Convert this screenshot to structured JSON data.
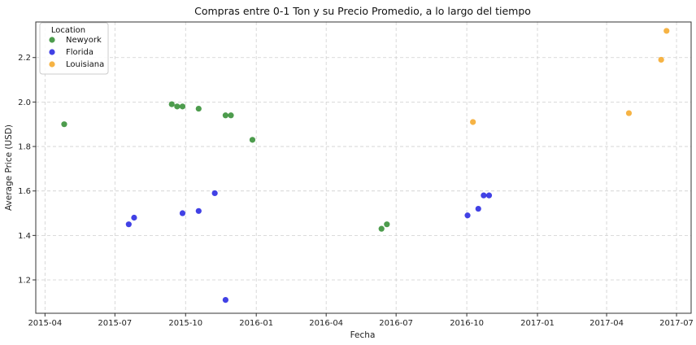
{
  "chart_data": {
    "type": "scatter",
    "title": "Compras entre 0-1 Ton y su Precio Promedio, a lo largo del tiempo",
    "xlabel": "Fecha",
    "ylabel": "Average Price (USD)",
    "xlim": [
      "2015-03-20",
      "2017-07-20"
    ],
    "ylim": [
      1.05,
      2.36
    ],
    "x_ticks": [
      "2015-04",
      "2015-07",
      "2015-10",
      "2016-01",
      "2016-04",
      "2016-07",
      "2016-10",
      "2017-01",
      "2017-04",
      "2017-07"
    ],
    "y_ticks": [
      1.2,
      1.4,
      1.6,
      1.8,
      2.0,
      2.2
    ],
    "grid": true,
    "legend": {
      "title": "Location",
      "placement": "top-left"
    },
    "series": [
      {
        "name": "Newyork",
        "color": "#2e8b2e",
        "points": [
          {
            "x": "2015-04-26",
            "y": 1.9
          },
          {
            "x": "2015-09-13",
            "y": 1.99
          },
          {
            "x": "2015-09-20",
            "y": 1.98
          },
          {
            "x": "2015-09-27",
            "y": 1.98
          },
          {
            "x": "2015-10-18",
            "y": 1.97
          },
          {
            "x": "2015-11-22",
            "y": 1.94
          },
          {
            "x": "2015-11-29",
            "y": 1.94
          },
          {
            "x": "2015-12-27",
            "y": 1.83
          },
          {
            "x": "2016-06-12",
            "y": 1.43
          },
          {
            "x": "2016-06-19",
            "y": 1.45
          }
        ]
      },
      {
        "name": "Florida",
        "color": "#2020e0",
        "points": [
          {
            "x": "2015-07-19",
            "y": 1.45
          },
          {
            "x": "2015-07-26",
            "y": 1.48
          },
          {
            "x": "2015-09-27",
            "y": 1.5
          },
          {
            "x": "2015-10-18",
            "y": 1.51
          },
          {
            "x": "2015-11-08",
            "y": 1.59
          },
          {
            "x": "2015-11-22",
            "y": 1.11
          },
          {
            "x": "2016-10-02",
            "y": 1.49
          },
          {
            "x": "2016-10-16",
            "y": 1.52
          },
          {
            "x": "2016-10-23",
            "y": 1.58
          },
          {
            "x": "2016-10-30",
            "y": 1.58
          }
        ]
      },
      {
        "name": "Louisiana",
        "color": "#f5a623",
        "points": [
          {
            "x": "2016-10-09",
            "y": 1.91
          },
          {
            "x": "2017-04-30",
            "y": 1.95
          },
          {
            "x": "2017-06-11",
            "y": 2.19
          },
          {
            "x": "2017-06-18",
            "y": 2.32
          }
        ]
      }
    ]
  }
}
